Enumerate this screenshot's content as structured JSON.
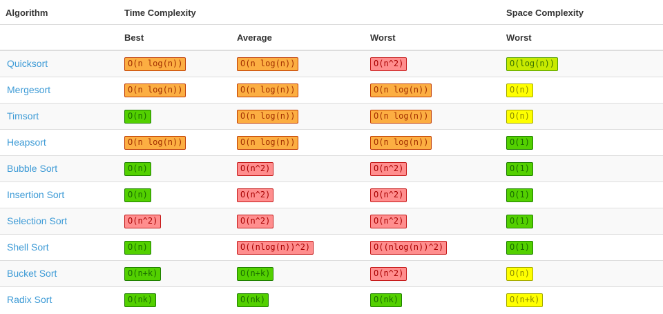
{
  "colors": {
    "link": "#3e9bd6",
    "header_text": "#333333",
    "row_stripe": "#f9f9f9",
    "divider": "#dddddd",
    "levels": {
      "green": {
        "bg": "#53d000",
        "border": "#1e7e00",
        "text": "#1a6b00"
      },
      "yellowgreen": {
        "bg": "#c8ea00",
        "border": "#4f9e00",
        "text": "#3a7200"
      },
      "yellow": {
        "bg": "#ffff00",
        "border": "#a3a900",
        "text": "#8b8b00"
      },
      "orange": {
        "bg": "#fcae42",
        "border": "#bf3a00",
        "text": "#a22e00"
      },
      "red": {
        "bg": "#ff8e8e",
        "border": "#c41818",
        "text": "#a80000"
      }
    }
  },
  "table": {
    "header": {
      "algorithm": "Algorithm",
      "time_complexity": "Time Complexity",
      "space_complexity": "Space Complexity",
      "sub": {
        "best": "Best",
        "average": "Average",
        "worst": "Worst",
        "space_worst": "Worst"
      }
    },
    "rows": [
      {
        "algorithm": "Quicksort",
        "best": {
          "value": "O(n log(n))",
          "level": "orange"
        },
        "average": {
          "value": "O(n log(n))",
          "level": "orange"
        },
        "worst": {
          "value": "O(n^2)",
          "level": "red"
        },
        "space_worst": {
          "value": "O(log(n))",
          "level": "yellowgreen"
        }
      },
      {
        "algorithm": "Mergesort",
        "best": {
          "value": "O(n log(n))",
          "level": "orange"
        },
        "average": {
          "value": "O(n log(n))",
          "level": "orange"
        },
        "worst": {
          "value": "O(n log(n))",
          "level": "orange"
        },
        "space_worst": {
          "value": "O(n)",
          "level": "yellow"
        }
      },
      {
        "algorithm": "Timsort",
        "best": {
          "value": "O(n)",
          "level": "green"
        },
        "average": {
          "value": "O(n log(n))",
          "level": "orange"
        },
        "worst": {
          "value": "O(n log(n))",
          "level": "orange"
        },
        "space_worst": {
          "value": "O(n)",
          "level": "yellow"
        }
      },
      {
        "algorithm": "Heapsort",
        "best": {
          "value": "O(n log(n))",
          "level": "orange"
        },
        "average": {
          "value": "O(n log(n))",
          "level": "orange"
        },
        "worst": {
          "value": "O(n log(n))",
          "level": "orange"
        },
        "space_worst": {
          "value": "O(1)",
          "level": "green"
        }
      },
      {
        "algorithm": "Bubble Sort",
        "best": {
          "value": "O(n)",
          "level": "green"
        },
        "average": {
          "value": "O(n^2)",
          "level": "red"
        },
        "worst": {
          "value": "O(n^2)",
          "level": "red"
        },
        "space_worst": {
          "value": "O(1)",
          "level": "green"
        }
      },
      {
        "algorithm": "Insertion Sort",
        "best": {
          "value": "O(n)",
          "level": "green"
        },
        "average": {
          "value": "O(n^2)",
          "level": "red"
        },
        "worst": {
          "value": "O(n^2)",
          "level": "red"
        },
        "space_worst": {
          "value": "O(1)",
          "level": "green"
        }
      },
      {
        "algorithm": "Selection Sort",
        "best": {
          "value": "O(n^2)",
          "level": "red"
        },
        "average": {
          "value": "O(n^2)",
          "level": "red"
        },
        "worst": {
          "value": "O(n^2)",
          "level": "red"
        },
        "space_worst": {
          "value": "O(1)",
          "level": "green"
        }
      },
      {
        "algorithm": "Shell Sort",
        "best": {
          "value": "O(n)",
          "level": "green"
        },
        "average": {
          "value": "O((nlog(n))^2)",
          "level": "red"
        },
        "worst": {
          "value": "O((nlog(n))^2)",
          "level": "red"
        },
        "space_worst": {
          "value": "O(1)",
          "level": "green"
        }
      },
      {
        "algorithm": "Bucket Sort",
        "best": {
          "value": "O(n+k)",
          "level": "green"
        },
        "average": {
          "value": "O(n+k)",
          "level": "green"
        },
        "worst": {
          "value": "O(n^2)",
          "level": "red"
        },
        "space_worst": {
          "value": "O(n)",
          "level": "yellow"
        }
      },
      {
        "algorithm": "Radix Sort",
        "best": {
          "value": "O(nk)",
          "level": "green"
        },
        "average": {
          "value": "O(nk)",
          "level": "green"
        },
        "worst": {
          "value": "O(nk)",
          "level": "green"
        },
        "space_worst": {
          "value": "O(n+k)",
          "level": "yellow"
        }
      }
    ]
  }
}
